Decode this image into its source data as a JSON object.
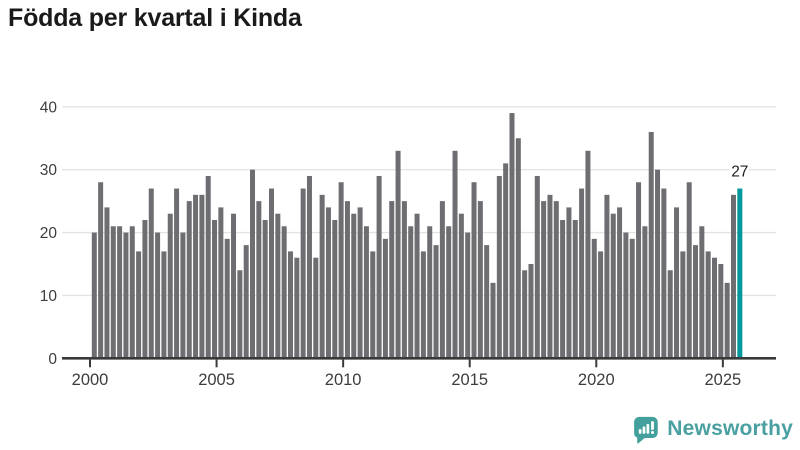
{
  "title": "Födda per kvartal i Kinda",
  "footer": {
    "brand": "Newsworthy"
  },
  "colors": {
    "title": "#1a1a1a",
    "bar": "#6d6d72",
    "highlight": "#00989e",
    "axis": "#3a3a3a",
    "grid": "#e4e4e4",
    "tick_label": "#3d3d3d",
    "annotation": "#222222",
    "brand": "#4a9fa0",
    "logo": "#43a09c",
    "background": "#ffffff"
  },
  "chart_data": {
    "type": "bar",
    "title": "Födda per kvartal i Kinda",
    "frequency": "quarterly",
    "x_start": "2000-Q1",
    "x_end": "2025-Q3",
    "xlabel": "",
    "ylabel": "",
    "ylim": [
      0,
      40
    ],
    "y_ticks": [
      0,
      10,
      20,
      30,
      40
    ],
    "x_tick_years": [
      2000,
      2005,
      2010,
      2015,
      2020,
      2025
    ],
    "grid": "horizontal",
    "legend": "none",
    "highlight_last_bar": true,
    "last_bar_label": "27",
    "values": [
      20,
      28,
      24,
      21,
      21,
      20,
      21,
      17,
      22,
      27,
      20,
      17,
      23,
      27,
      20,
      25,
      26,
      26,
      29,
      22,
      24,
      19,
      23,
      14,
      18,
      30,
      25,
      22,
      27,
      23,
      21,
      17,
      16,
      27,
      29,
      16,
      26,
      24,
      22,
      28,
      25,
      23,
      24,
      21,
      17,
      29,
      19,
      25,
      33,
      25,
      21,
      23,
      17,
      21,
      18,
      25,
      21,
      33,
      23,
      20,
      28,
      25,
      18,
      12,
      29,
      31,
      39,
      35,
      14,
      15,
      29,
      25,
      26,
      25,
      22,
      24,
      22,
      27,
      33,
      19,
      17,
      26,
      23,
      24,
      20,
      19,
      28,
      21,
      36,
      30,
      27,
      14,
      24,
      17,
      28,
      18,
      21,
      17,
      16,
      15,
      12,
      26,
      27
    ]
  }
}
